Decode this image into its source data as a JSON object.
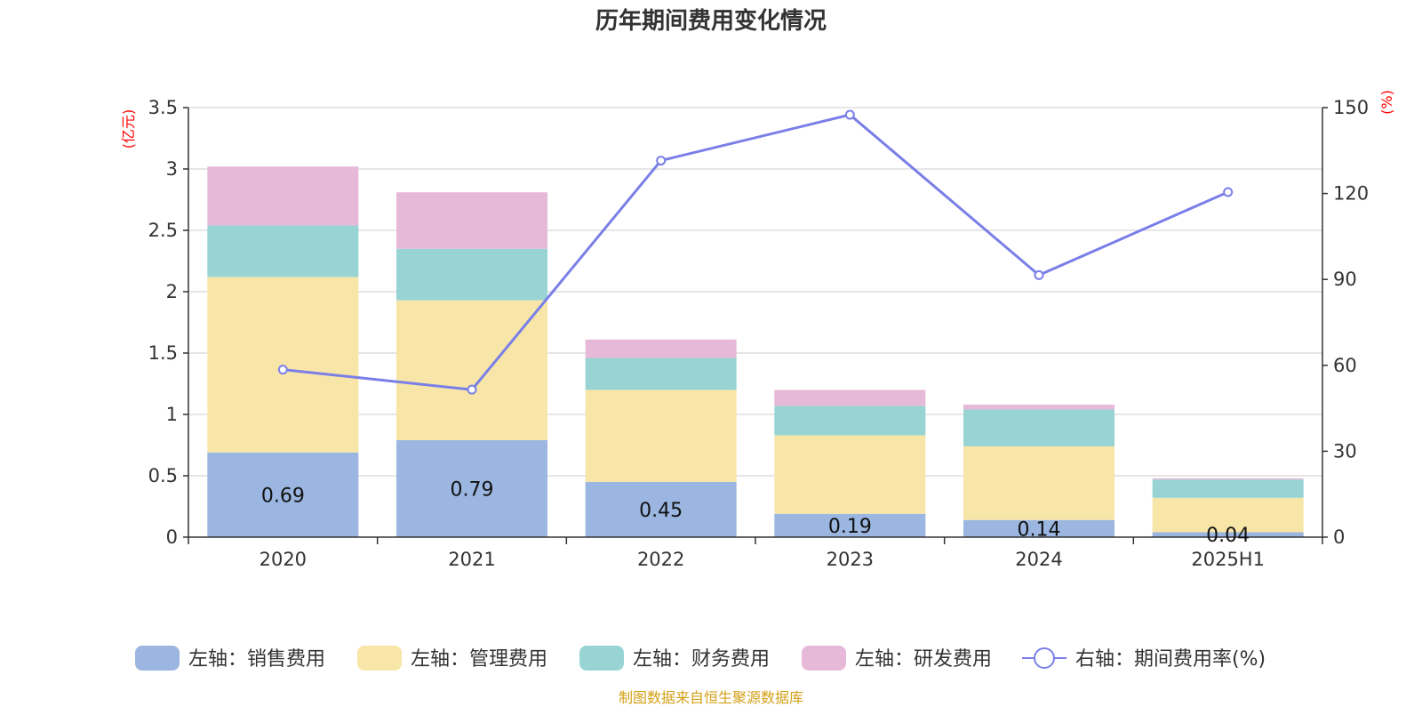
{
  "chart_data": {
    "type": "bar",
    "title": "历年期间费用变化情况",
    "left_unit": "(亿元)",
    "right_unit": "(%)",
    "categories": [
      "2020",
      "2021",
      "2022",
      "2023",
      "2024",
      "2025H1"
    ],
    "ylim_left": [
      0,
      3.5
    ],
    "yticks_left": [
      "0",
      "0.5",
      "1",
      "1.5",
      "2",
      "2.5",
      "3",
      "3.5"
    ],
    "ylim_right": [
      0,
      150
    ],
    "yticks_right": [
      "0",
      "30",
      "60",
      "90",
      "120",
      "150"
    ],
    "grid": true,
    "legend_position": "bottom",
    "series": [
      {
        "name": "左轴：销售费用",
        "axis": "left",
        "kind": "bar",
        "color": "#9bb6e0",
        "values": [
          0.69,
          0.79,
          0.45,
          0.19,
          0.14,
          0.04
        ],
        "labels": [
          "0.69",
          "0.79",
          "0.45",
          "0.19",
          "0.14",
          "0.04"
        ]
      },
      {
        "name": "左轴：管理费用",
        "axis": "left",
        "kind": "bar",
        "color": "#f8e6a8",
        "values": [
          1.43,
          1.14,
          0.75,
          0.64,
          0.6,
          0.28
        ]
      },
      {
        "name": "左轴：财务费用",
        "axis": "left",
        "kind": "bar",
        "color": "#98d4d4",
        "values": [
          0.42,
          0.42,
          0.26,
          0.24,
          0.3,
          0.15
        ]
      },
      {
        "name": "左轴：研发费用",
        "axis": "left",
        "kind": "bar",
        "color": "#e7b9d9",
        "values": [
          0.48,
          0.46,
          0.15,
          0.13,
          0.04,
          0.01
        ]
      },
      {
        "name": "右轴：期间费用率(%)",
        "axis": "right",
        "kind": "line",
        "color": "#7a7fe8",
        "values": [
          58.5,
          51.5,
          131.5,
          147.5,
          91.5,
          120.5
        ]
      }
    ]
  },
  "source_note": "制图数据来自恒生聚源数据库"
}
